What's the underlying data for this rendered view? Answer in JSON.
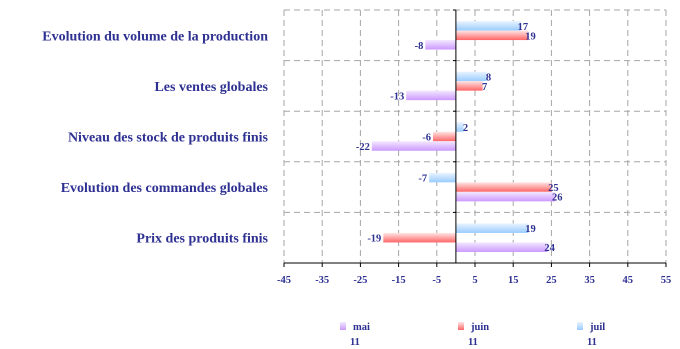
{
  "chart_data": {
    "type": "bar",
    "orientation": "horizontal",
    "categories": [
      "Evolution du volume de la production",
      "Les ventes globales",
      "Niveau des stock de produits finis",
      "Evolution des commandes globales",
      "Prix des produits finis"
    ],
    "series": [
      {
        "name": "mai 11",
        "legend_top": "mai",
        "legend_bottom": "11",
        "color": "#cc99ff",
        "light": "#f3e8ff",
        "values": [
          -8,
          -13,
          -22,
          26,
          24
        ]
      },
      {
        "name": "juin 11",
        "legend_top": "juin",
        "legend_bottom": "11",
        "color": "#ff6666",
        "light": "#ffe5e5",
        "values": [
          19,
          7,
          -6,
          25,
          -19
        ]
      },
      {
        "name": "juil 11",
        "legend_top": "juil",
        "legend_bottom": "11",
        "color": "#99ccff",
        "light": "#eaf4ff",
        "values": [
          17,
          8,
          2,
          -7,
          19
        ]
      }
    ],
    "xlim": [
      -45,
      55
    ],
    "xticks": [
      -45,
      -35,
      -25,
      -15,
      -5,
      5,
      15,
      25,
      35,
      45,
      55
    ],
    "grid": true,
    "legend_position": "bottom"
  }
}
